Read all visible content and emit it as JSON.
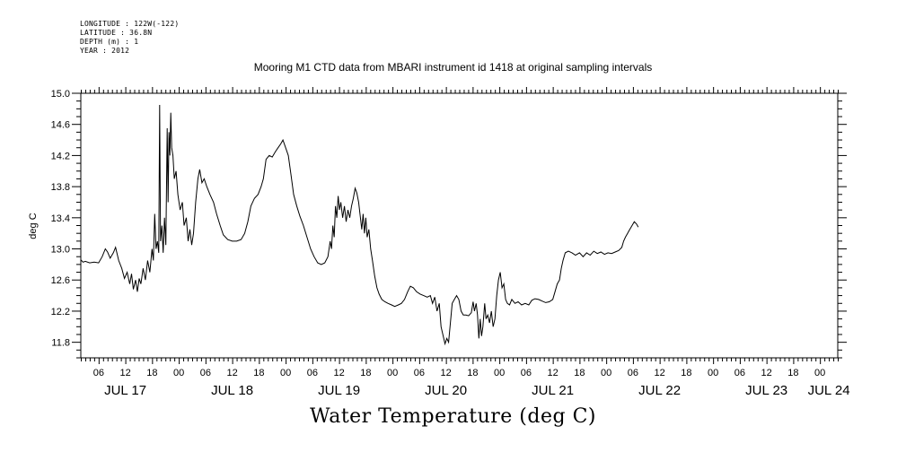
{
  "metadata": {
    "longitude": "LONGITUDE : 122W(-122)",
    "latitude": "LATITUDE : 36.8N",
    "depth": "DEPTH (m) : 1",
    "year": "YEAR : 2012"
  },
  "chart_data": {
    "type": "line",
    "title": "Mooring M1 CTD data from MBARI instrument id 1418 at original sampling intervals",
    "bottom_title": "Water Temperature (deg C)",
    "ylabel": "deg C",
    "xlabel": "",
    "ylim": [
      11.6,
      15.0
    ],
    "yticks": [
      "15.0",
      "14.6",
      "14.2",
      "13.8",
      "13.4",
      "13.0",
      "12.6",
      "12.2",
      "11.8"
    ],
    "xlim_hours": [
      0,
      170
    ],
    "xtick_labels": [
      {
        "h": 4,
        "label": "06"
      },
      {
        "h": 10,
        "label": "12"
      },
      {
        "h": 16,
        "label": "18"
      },
      {
        "h": 22,
        "label": "00"
      },
      {
        "h": 28,
        "label": "06"
      },
      {
        "h": 34,
        "label": "12"
      },
      {
        "h": 40,
        "label": "18"
      },
      {
        "h": 46,
        "label": "00"
      },
      {
        "h": 52,
        "label": "06"
      },
      {
        "h": 58,
        "label": "12"
      },
      {
        "h": 64,
        "label": "18"
      },
      {
        "h": 70,
        "label": "00"
      },
      {
        "h": 76,
        "label": "06"
      },
      {
        "h": 82,
        "label": "12"
      },
      {
        "h": 88,
        "label": "18"
      },
      {
        "h": 94,
        "label": "00"
      },
      {
        "h": 100,
        "label": "06"
      },
      {
        "h": 106,
        "label": "12"
      },
      {
        "h": 112,
        "label": "18"
      },
      {
        "h": 118,
        "label": "00"
      },
      {
        "h": 124,
        "label": "06"
      },
      {
        "h": 130,
        "label": "12"
      },
      {
        "h": 136,
        "label": "18"
      },
      {
        "h": 142,
        "label": "00"
      },
      {
        "h": 148,
        "label": "06"
      },
      {
        "h": 154,
        "label": "12"
      },
      {
        "h": 160,
        "label": "18"
      },
      {
        "h": 166,
        "label": "00"
      }
    ],
    "date_labels": [
      {
        "h": 10,
        "label": "JUL 17"
      },
      {
        "h": 34,
        "label": "JUL 18"
      },
      {
        "h": 58,
        "label": "JUL 19"
      },
      {
        "h": 82,
        "label": "JUL 20"
      },
      {
        "h": 106,
        "label": "JUL 21"
      },
      {
        "h": 130,
        "label": "JUL 22"
      },
      {
        "h": 154,
        "label": "JUL 23"
      },
      {
        "h": 168,
        "label": "JUL 24"
      }
    ],
    "series": [
      {
        "values_hours_degC": [
          [
            0,
            12.86
          ],
          [
            0.5,
            12.83
          ],
          [
            1,
            12.84
          ],
          [
            2,
            12.82
          ],
          [
            3,
            12.83
          ],
          [
            4,
            12.82
          ],
          [
            4.8,
            12.9
          ],
          [
            5.5,
            13.0
          ],
          [
            6,
            12.96
          ],
          [
            6.6,
            12.88
          ],
          [
            7.3,
            12.95
          ],
          [
            7.8,
            13.02
          ],
          [
            8.5,
            12.85
          ],
          [
            9.2,
            12.75
          ],
          [
            9.8,
            12.62
          ],
          [
            10.4,
            12.7
          ],
          [
            11,
            12.55
          ],
          [
            11.4,
            12.68
          ],
          [
            11.8,
            12.48
          ],
          [
            12.3,
            12.6
          ],
          [
            12.7,
            12.45
          ],
          [
            13.1,
            12.62
          ],
          [
            13.5,
            12.55
          ],
          [
            14,
            12.75
          ],
          [
            14.5,
            12.6
          ],
          [
            15,
            12.85
          ],
          [
            15.5,
            12.7
          ],
          [
            16,
            13.0
          ],
          [
            16.3,
            12.85
          ],
          [
            16.6,
            13.45
          ],
          [
            16.9,
            13.0
          ],
          [
            17.2,
            13.1
          ],
          [
            17.5,
            12.95
          ],
          [
            17.7,
            14.85
          ],
          [
            17.9,
            13.1
          ],
          [
            18.2,
            13.3
          ],
          [
            18.5,
            12.95
          ],
          [
            18.8,
            13.4
          ],
          [
            19.1,
            13.05
          ],
          [
            19.4,
            14.55
          ],
          [
            19.6,
            13.6
          ],
          [
            19.8,
            14.5
          ],
          [
            20,
            14.2
          ],
          [
            20.2,
            14.75
          ],
          [
            20.4,
            14.3
          ],
          [
            20.7,
            14.2
          ],
          [
            21,
            13.9
          ],
          [
            21.4,
            14.0
          ],
          [
            21.8,
            13.7
          ],
          [
            22.3,
            13.5
          ],
          [
            22.8,
            13.6
          ],
          [
            23.2,
            13.3
          ],
          [
            23.7,
            13.4
          ],
          [
            24.1,
            13.1
          ],
          [
            24.5,
            13.25
          ],
          [
            24.9,
            13.05
          ],
          [
            25.3,
            13.2
          ],
          [
            25.8,
            13.6
          ],
          [
            26.3,
            13.9
          ],
          [
            26.7,
            14.02
          ],
          [
            27.2,
            13.85
          ],
          [
            27.7,
            13.9
          ],
          [
            28.3,
            13.8
          ],
          [
            29,
            13.7
          ],
          [
            29.8,
            13.6
          ],
          [
            30.5,
            13.45
          ],
          [
            31.3,
            13.3
          ],
          [
            32,
            13.18
          ],
          [
            33,
            13.12
          ],
          [
            34,
            13.1
          ],
          [
            35,
            13.1
          ],
          [
            36,
            13.12
          ],
          [
            36.8,
            13.2
          ],
          [
            37.5,
            13.35
          ],
          [
            38.2,
            13.55
          ],
          [
            39,
            13.65
          ],
          [
            39.8,
            13.7
          ],
          [
            40.5,
            13.8
          ],
          [
            41,
            13.9
          ],
          [
            41.6,
            14.15
          ],
          [
            42.3,
            14.2
          ],
          [
            43,
            14.18
          ],
          [
            43.7,
            14.25
          ],
          [
            44.3,
            14.3
          ],
          [
            44.9,
            14.35
          ],
          [
            45.4,
            14.4
          ],
          [
            46,
            14.3
          ],
          [
            46.6,
            14.2
          ],
          [
            47.2,
            13.95
          ],
          [
            47.8,
            13.7
          ],
          [
            48.5,
            13.55
          ],
          [
            49.2,
            13.42
          ],
          [
            50,
            13.3
          ],
          [
            50.8,
            13.15
          ],
          [
            51.6,
            13.0
          ],
          [
            52.4,
            12.9
          ],
          [
            53.2,
            12.82
          ],
          [
            54,
            12.8
          ],
          [
            54.8,
            12.82
          ],
          [
            55.5,
            12.9
          ],
          [
            56,
            13.1
          ],
          [
            56.3,
            13.0
          ],
          [
            56.6,
            13.3
          ],
          [
            56.9,
            13.15
          ],
          [
            57.2,
            13.55
          ],
          [
            57.5,
            13.4
          ],
          [
            57.8,
            13.68
          ],
          [
            58.1,
            13.5
          ],
          [
            58.4,
            13.6
          ],
          [
            58.8,
            13.4
          ],
          [
            59.2,
            13.55
          ],
          [
            59.6,
            13.35
          ],
          [
            60,
            13.5
          ],
          [
            60.4,
            13.4
          ],
          [
            60.8,
            13.55
          ],
          [
            61.2,
            13.65
          ],
          [
            61.6,
            13.78
          ],
          [
            62,
            13.72
          ],
          [
            62.4,
            13.6
          ],
          [
            62.8,
            13.4
          ],
          [
            63.1,
            13.25
          ],
          [
            63.4,
            13.45
          ],
          [
            63.7,
            13.2
          ],
          [
            64,
            13.4
          ],
          [
            64.3,
            13.15
          ],
          [
            64.7,
            13.25
          ],
          [
            65.1,
            13.0
          ],
          [
            65.5,
            12.85
          ],
          [
            66,
            12.65
          ],
          [
            66.5,
            12.5
          ],
          [
            67,
            12.42
          ],
          [
            67.6,
            12.35
          ],
          [
            68.3,
            12.32
          ],
          [
            69,
            12.3
          ],
          [
            69.8,
            12.28
          ],
          [
            70.5,
            12.26
          ],
          [
            71.3,
            12.28
          ],
          [
            72,
            12.3
          ],
          [
            72.7,
            12.35
          ],
          [
            73.4,
            12.45
          ],
          [
            74,
            12.52
          ],
          [
            74.7,
            12.5
          ],
          [
            75.4,
            12.45
          ],
          [
            76.2,
            12.42
          ],
          [
            77,
            12.4
          ],
          [
            77.8,
            12.38
          ],
          [
            78.5,
            12.4
          ],
          [
            79,
            12.3
          ],
          [
            79.5,
            12.38
          ],
          [
            80,
            12.2
          ],
          [
            80.5,
            12.3
          ],
          [
            80.9,
            12.0
          ],
          [
            81.3,
            11.9
          ],
          [
            81.8,
            11.78
          ],
          [
            82.2,
            11.85
          ],
          [
            82.6,
            11.8
          ],
          [
            83,
            12.05
          ],
          [
            83.4,
            12.3
          ],
          [
            83.9,
            12.35
          ],
          [
            84.4,
            12.4
          ],
          [
            84.9,
            12.35
          ],
          [
            85.4,
            12.2
          ],
          [
            85.9,
            12.15
          ],
          [
            86.5,
            12.15
          ],
          [
            87.1,
            12.14
          ],
          [
            87.7,
            12.18
          ],
          [
            88.1,
            12.32
          ],
          [
            88.4,
            12.2
          ],
          [
            88.8,
            12.3
          ],
          [
            89.1,
            12.15
          ],
          [
            89.4,
            11.85
          ],
          [
            89.7,
            12.1
          ],
          [
            90,
            11.88
          ],
          [
            90.3,
            12.0
          ],
          [
            90.7,
            12.3
          ],
          [
            91,
            12.1
          ],
          [
            91.4,
            12.15
          ],
          [
            91.8,
            12.05
          ],
          [
            92.2,
            12.2
          ],
          [
            92.6,
            12.0
          ],
          [
            93,
            12.1
          ],
          [
            93.4,
            12.4
          ],
          [
            93.8,
            12.6
          ],
          [
            94.2,
            12.7
          ],
          [
            94.6,
            12.5
          ],
          [
            95,
            12.55
          ],
          [
            95.4,
            12.35
          ],
          [
            95.8,
            12.3
          ],
          [
            96.3,
            12.28
          ],
          [
            96.8,
            12.35
          ],
          [
            97.5,
            12.3
          ],
          [
            98.2,
            12.32
          ],
          [
            99,
            12.28
          ],
          [
            99.8,
            12.3
          ],
          [
            100.6,
            12.28
          ],
          [
            101.3,
            12.34
          ],
          [
            102,
            12.36
          ],
          [
            102.8,
            12.35
          ],
          [
            103.6,
            12.33
          ],
          [
            104.4,
            12.31
          ],
          [
            105.2,
            12.32
          ],
          [
            106,
            12.35
          ],
          [
            106.5,
            12.45
          ],
          [
            107,
            12.55
          ],
          [
            107.5,
            12.6
          ],
          [
            107.9,
            12.75
          ],
          [
            108.3,
            12.85
          ],
          [
            108.8,
            12.95
          ],
          [
            109.5,
            12.97
          ],
          [
            110.3,
            12.95
          ],
          [
            111.1,
            12.92
          ],
          [
            112,
            12.95
          ],
          [
            112.8,
            12.9
          ],
          [
            113.6,
            12.95
          ],
          [
            114.4,
            12.92
          ],
          [
            115.2,
            12.97
          ],
          [
            116,
            12.94
          ],
          [
            116.8,
            12.96
          ],
          [
            117.6,
            12.93
          ],
          [
            118.4,
            12.95
          ],
          [
            119.2,
            12.94
          ],
          [
            120,
            12.96
          ],
          [
            120.8,
            12.98
          ],
          [
            121.5,
            13.02
          ],
          [
            121.9,
            13.1
          ],
          [
            122.3,
            13.15
          ],
          [
            122.8,
            13.2
          ],
          [
            123.3,
            13.25
          ],
          [
            123.8,
            13.3
          ],
          [
            124.3,
            13.35
          ],
          [
            124.8,
            13.32
          ],
          [
            125.2,
            13.28
          ]
        ]
      }
    ]
  }
}
